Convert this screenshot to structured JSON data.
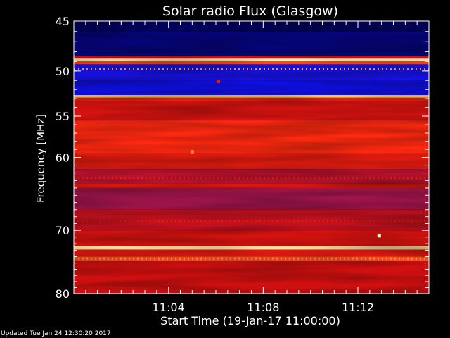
{
  "chart_data": {
    "type": "heatmap",
    "title": "Solar radio Flux (Glasgow)",
    "xlabel": "Start Time (19-Jan-17 11:00:00)",
    "ylabel": "Frequency [MHz]",
    "x_unit": "minutes",
    "xlim": [
      0,
      15
    ],
    "ylim": [
      45,
      80
    ],
    "y_scale": "log",
    "y_inverted": true,
    "x_ticks": [
      {
        "value": 4,
        "label": "11:04"
      },
      {
        "value": 8,
        "label": "11:08"
      },
      {
        "value": 12,
        "label": "11:12"
      }
    ],
    "y_ticks": [
      {
        "value": 45,
        "label": "45"
      },
      {
        "value": 50,
        "label": "50"
      },
      {
        "value": 55,
        "label": "55"
      },
      {
        "value": 60,
        "label": "60"
      },
      {
        "value": 70,
        "label": "70"
      },
      {
        "value": 80,
        "label": "80"
      }
    ],
    "colormap": [
      "#00004a",
      "#1010e8",
      "#6a1a8a",
      "#d01010",
      "#ff2a10",
      "#ffa040",
      "#ffffc8"
    ],
    "bands": [
      {
        "f0": 45.0,
        "f1": 46.0,
        "level": 0.02
      },
      {
        "f0": 46.0,
        "f1": 48.4,
        "level": 0.05
      },
      {
        "f0": 48.4,
        "f1": 48.7,
        "level": 0.5
      },
      {
        "f0": 48.7,
        "f1": 49.0,
        "level": 0.97
      },
      {
        "f0": 49.0,
        "f1": 49.3,
        "level": 0.7
      },
      {
        "f0": 49.3,
        "f1": 51.0,
        "level": 0.18
      },
      {
        "f0": 51.0,
        "f1": 52.6,
        "level": 0.16
      },
      {
        "f0": 52.6,
        "f1": 52.9,
        "level": 0.9
      },
      {
        "f0": 52.9,
        "f1": 53.3,
        "level": 0.6
      },
      {
        "f0": 53.3,
        "f1": 55.5,
        "level": 0.52
      },
      {
        "f0": 55.5,
        "f1": 59.5,
        "level": 0.66
      },
      {
        "f0": 59.5,
        "f1": 61.5,
        "level": 0.58
      },
      {
        "f0": 61.5,
        "f1": 63.5,
        "level": 0.46
      },
      {
        "f0": 63.5,
        "f1": 64.0,
        "level": 0.55
      },
      {
        "f0": 64.0,
        "f1": 67.0,
        "level": 0.42
      },
      {
        "f0": 67.0,
        "f1": 70.0,
        "level": 0.48
      },
      {
        "f0": 70.0,
        "f1": 72.4,
        "level": 0.52
      },
      {
        "f0": 72.4,
        "f1": 72.9,
        "level": 0.95
      },
      {
        "f0": 72.9,
        "f1": 74.0,
        "level": 0.55
      },
      {
        "f0": 74.0,
        "f1": 74.6,
        "level": 0.72
      },
      {
        "f0": 74.6,
        "f1": 80.0,
        "level": 0.5
      }
    ],
    "dotted_lines": [
      {
        "f": 49.8,
        "level": 0.85
      },
      {
        "f": 74.3,
        "level": 0.82
      },
      {
        "f": 62.7,
        "level": 0.6
      },
      {
        "f": 68.6,
        "level": 0.58
      }
    ],
    "bursts": [
      {
        "t": 12.9,
        "f": 70.8,
        "level": 1.0
      },
      {
        "t": 5.0,
        "f": 59.3,
        "level": 0.78
      },
      {
        "t": 6.1,
        "f": 51.1,
        "level": 0.6
      }
    ]
  },
  "footer": {
    "updated_text": "Updated Tue Jan 24 12:30:20 2017"
  }
}
